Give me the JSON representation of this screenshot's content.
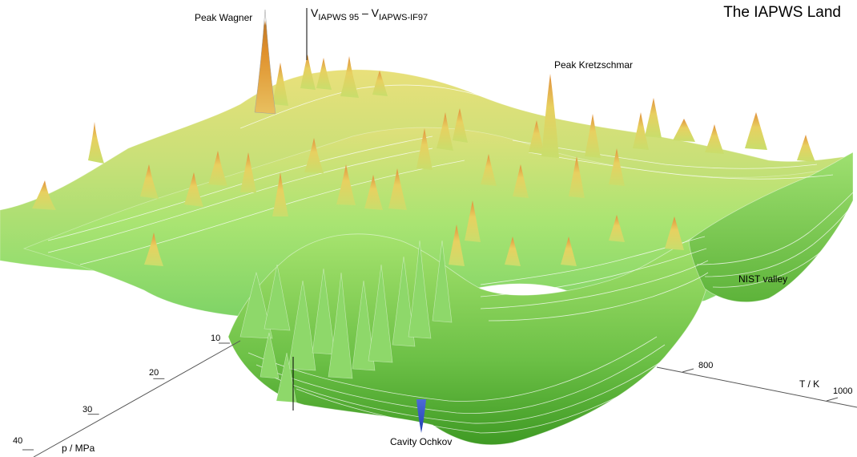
{
  "chart_data": {
    "type": "surface",
    "title": "The IAPWS Land",
    "vertical_axis": {
      "symbol": "V",
      "minuend": "IAPWS 95",
      "operator": "–",
      "subtrahend": "IAPWS-IF97"
    },
    "pressure_axis": {
      "label": "p / MPa",
      "ticks": [
        10,
        20,
        30,
        40
      ]
    },
    "temperature_axis": {
      "label": "T / K",
      "ticks": [
        800,
        1000
      ]
    },
    "annotations": [
      "Peak Wagner",
      "Peak Kretzschmar",
      "NIST valley",
      "Cavity Ochkov"
    ],
    "colormap": [
      "#3355cc",
      "#2e8b1f",
      "#8be06a",
      "#e8e070",
      "#e6a040",
      "#ffffff"
    ],
    "grid": false,
    "legend": "none"
  }
}
